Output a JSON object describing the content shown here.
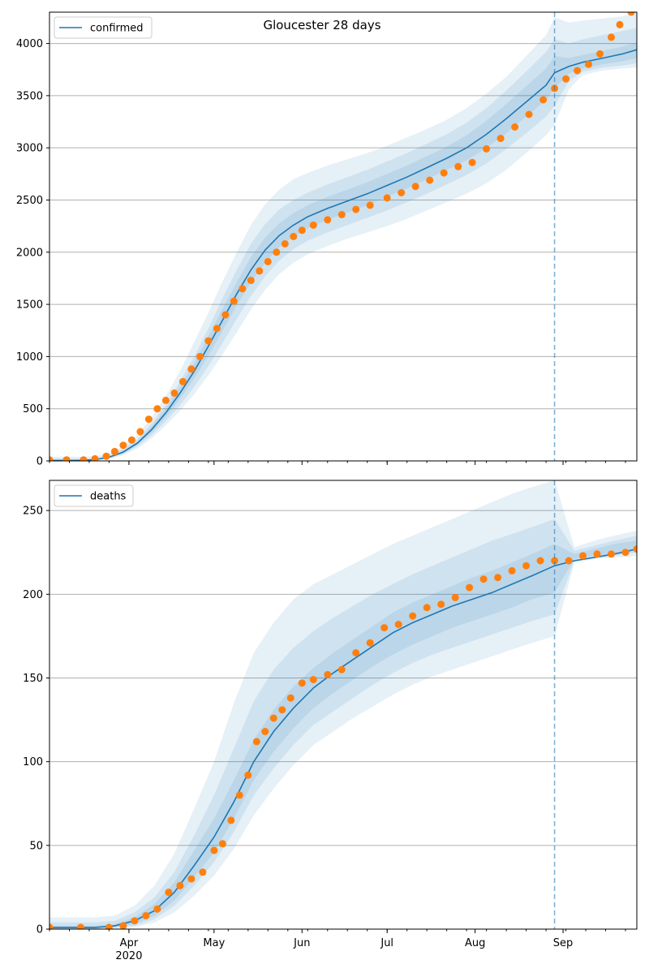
{
  "figure": {
    "title": "Gloucester 28 days",
    "x_tick_labels": [
      "Apr",
      "May",
      "Jun",
      "Jul",
      "Aug",
      "Sep"
    ],
    "x_year_label": "2020"
  },
  "colors": {
    "model_line": "#1f77b4",
    "band": "#1f77b4",
    "observed": "#ff7f0e",
    "grid": "#b0b0b0",
    "vline": "#1f77b4"
  },
  "chart_data": [
    {
      "type": "line",
      "panel": "top",
      "title": "Gloucester 28 days",
      "legend": {
        "label": "confirmed",
        "placement": "top-left"
      },
      "x_type": "date",
      "xlim": [
        "2020-03-04",
        "2020-09-27"
      ],
      "ylim": [
        0,
        4300
      ],
      "yticks": [
        0,
        500,
        1000,
        1500,
        2000,
        2500,
        3000,
        3500,
        4000
      ],
      "grid": "horizontal",
      "forecast_start": "2020-08-29",
      "model": {
        "x": [
          "2020-03-04",
          "2020-03-14",
          "2020-03-20",
          "2020-03-25",
          "2020-03-30",
          "2020-04-04",
          "2020-04-09",
          "2020-04-14",
          "2020-04-19",
          "2020-04-24",
          "2020-04-29",
          "2020-05-04",
          "2020-05-09",
          "2020-05-14",
          "2020-05-19",
          "2020-05-24",
          "2020-05-29",
          "2020-06-03",
          "2020-06-10",
          "2020-06-17",
          "2020-06-24",
          "2020-07-01",
          "2020-07-08",
          "2020-07-15",
          "2020-07-22",
          "2020-07-29",
          "2020-08-05",
          "2020-08-12",
          "2020-08-19",
          "2020-08-26",
          "2020-08-29",
          "2020-09-03",
          "2020-09-08",
          "2020-09-15",
          "2020-09-22",
          "2020-09-27"
        ],
        "y": [
          5,
          5,
          12,
          35,
          85,
          170,
          300,
          460,
          650,
          860,
          1100,
          1350,
          1600,
          1830,
          2020,
          2160,
          2260,
          2340,
          2420,
          2490,
          2560,
          2640,
          2720,
          2810,
          2900,
          3000,
          3130,
          3280,
          3440,
          3600,
          3720,
          3780,
          3820,
          3860,
          3900,
          3940
        ]
      },
      "bands": [
        {
          "level": "outer",
          "lower": [
            0,
            0,
            5,
            20,
            55,
            120,
            215,
            340,
            480,
            640,
            820,
            1020,
            1230,
            1450,
            1640,
            1790,
            1900,
            1980,
            2060,
            2130,
            2190,
            2250,
            2320,
            2400,
            2480,
            2560,
            2660,
            2790,
            2950,
            3120,
            3220,
            3560,
            3700,
            3740,
            3760,
            3770
          ],
          "upper": [
            40,
            40,
            45,
            70,
            140,
            250,
            420,
            620,
            860,
            1140,
            1420,
            1720,
            2000,
            2260,
            2460,
            2600,
            2700,
            2760,
            2830,
            2890,
            2950,
            3020,
            3100,
            3180,
            3270,
            3380,
            3520,
            3680,
            3880,
            4080,
            4250,
            4200,
            4220,
            4240,
            4260,
            4300
          ]
        },
        {
          "level": "middle",
          "lower": [
            0,
            0,
            8,
            26,
            66,
            140,
            245,
            380,
            535,
            710,
            910,
            1130,
            1360,
            1580,
            1770,
            1920,
            2030,
            2110,
            2190,
            2260,
            2330,
            2400,
            2480,
            2560,
            2650,
            2740,
            2850,
            2990,
            3140,
            3300,
            3400,
            3640,
            3730,
            3770,
            3790,
            3810
          ],
          "upper": [
            20,
            20,
            25,
            55,
            115,
            210,
            360,
            540,
            760,
            1000,
            1270,
            1560,
            1830,
            2080,
            2270,
            2410,
            2500,
            2570,
            2650,
            2720,
            2790,
            2870,
            2950,
            3040,
            3130,
            3240,
            3380,
            3550,
            3730,
            3920,
            4040,
            4000,
            4040,
            4080,
            4120,
            4150
          ]
        },
        {
          "level": "inner",
          "lower": [
            2,
            2,
            10,
            30,
            75,
            155,
            272,
            420,
            595,
            790,
            1010,
            1250,
            1490,
            1710,
            1900,
            2050,
            2150,
            2230,
            2310,
            2380,
            2450,
            2530,
            2610,
            2700,
            2790,
            2880,
            3000,
            3140,
            3300,
            3460,
            3570,
            3710,
            3760,
            3800,
            3830,
            3860
          ],
          "upper": [
            10,
            10,
            16,
            42,
            98,
            188,
            330,
            505,
            710,
            935,
            1195,
            1455,
            1710,
            1955,
            2140,
            2275,
            2375,
            2450,
            2530,
            2600,
            2670,
            2750,
            2830,
            2920,
            3010,
            3120,
            3260,
            3420,
            3590,
            3760,
            3880,
            3860,
            3890,
            3930,
            3970,
            4010
          ]
        }
      ],
      "observed": {
        "x": [
          "2020-03-04",
          "2020-03-10",
          "2020-03-16",
          "2020-03-20",
          "2020-03-24",
          "2020-03-27",
          "2020-03-30",
          "2020-04-02",
          "2020-04-05",
          "2020-04-08",
          "2020-04-11",
          "2020-04-14",
          "2020-04-17",
          "2020-04-20",
          "2020-04-23",
          "2020-04-26",
          "2020-04-29",
          "2020-05-02",
          "2020-05-05",
          "2020-05-08",
          "2020-05-11",
          "2020-05-14",
          "2020-05-17",
          "2020-05-20",
          "2020-05-23",
          "2020-05-26",
          "2020-05-29",
          "2020-06-01",
          "2020-06-05",
          "2020-06-10",
          "2020-06-15",
          "2020-06-20",
          "2020-06-25",
          "2020-07-01",
          "2020-07-06",
          "2020-07-11",
          "2020-07-16",
          "2020-07-21",
          "2020-07-26",
          "2020-07-31",
          "2020-08-05",
          "2020-08-10",
          "2020-08-15",
          "2020-08-20",
          "2020-08-25",
          "2020-08-29",
          "2020-09-02",
          "2020-09-06",
          "2020-09-10",
          "2020-09-14",
          "2020-09-18",
          "2020-09-21",
          "2020-09-25",
          "2020-09-27"
        ],
        "y": [
          10,
          10,
          10,
          20,
          45,
          90,
          150,
          200,
          280,
          400,
          500,
          580,
          650,
          760,
          880,
          1000,
          1150,
          1270,
          1400,
          1530,
          1650,
          1730,
          1820,
          1910,
          2000,
          2080,
          2150,
          2210,
          2260,
          2310,
          2360,
          2410,
          2450,
          2520,
          2570,
          2630,
          2690,
          2760,
          2820,
          2860,
          2990,
          3090,
          3200,
          3320,
          3460,
          3570,
          3660,
          3740,
          3800,
          3900,
          4060,
          4180,
          4300,
          4330
        ]
      }
    },
    {
      "type": "line",
      "panel": "bottom",
      "legend": {
        "label": "deaths",
        "placement": "top-left"
      },
      "x_type": "date",
      "xlim": [
        "2020-03-04",
        "2020-09-27"
      ],
      "ylim": [
        0,
        268
      ],
      "yticks": [
        0,
        50,
        100,
        150,
        200,
        250
      ],
      "grid": "horizontal",
      "forecast_start": "2020-08-29",
      "model": {
        "x": [
          "2020-03-04",
          "2020-03-20",
          "2020-03-27",
          "2020-04-03",
          "2020-04-10",
          "2020-04-17",
          "2020-04-24",
          "2020-05-01",
          "2020-05-08",
          "2020-05-15",
          "2020-05-22",
          "2020-05-29",
          "2020-06-05",
          "2020-06-12",
          "2020-06-19",
          "2020-06-26",
          "2020-07-03",
          "2020-07-10",
          "2020-07-17",
          "2020-07-24",
          "2020-07-31",
          "2020-08-07",
          "2020-08-14",
          "2020-08-21",
          "2020-08-29",
          "2020-09-05",
          "2020-09-12",
          "2020-09-19",
          "2020-09-27"
        ],
        "y": [
          1,
          1,
          2,
          5,
          11,
          22,
          38,
          55,
          76,
          100,
          118,
          132,
          144,
          153,
          161,
          169,
          177,
          183,
          188,
          193,
          197,
          201,
          206,
          211,
          217,
          220,
          222,
          224,
          227
        ]
      },
      "bands": [
        {
          "level": "outer",
          "lower": [
            0,
            0,
            0,
            1,
            4,
            10,
            20,
            32,
            48,
            68,
            84,
            98,
            110,
            118,
            126,
            133,
            140,
            146,
            151,
            155,
            159,
            163,
            167,
            171,
            175,
            219,
            221,
            222,
            223
          ],
          "upper": [
            7,
            7,
            8,
            14,
            26,
            45,
            72,
            100,
            135,
            165,
            183,
            197,
            206,
            212,
            218,
            224,
            230,
            235,
            240,
            245,
            250,
            255,
            260,
            264,
            268,
            228,
            232,
            235,
            238
          ]
        },
        {
          "level": "middle",
          "lower": [
            0,
            0,
            1,
            2,
            6,
            14,
            26,
            40,
            58,
            80,
            96,
            110,
            122,
            130,
            138,
            146,
            153,
            159,
            164,
            168,
            172,
            176,
            180,
            184,
            188,
            220,
            222,
            223,
            225
          ],
          "upper": [
            4,
            4,
            5,
            10,
            19,
            34,
            56,
            80,
            108,
            136,
            155,
            168,
            178,
            186,
            193,
            200,
            206,
            212,
            217,
            222,
            227,
            232,
            236,
            240,
            245,
            226,
            229,
            232,
            235
          ]
        },
        {
          "level": "inner",
          "lower": [
            0,
            0,
            1,
            3,
            8,
            17,
            31,
            46,
            66,
            89,
            106,
            120,
            132,
            141,
            149,
            157,
            164,
            170,
            175,
            180,
            184,
            188,
            192,
            197,
            201,
            221,
            223,
            224,
            226
          ],
          "upper": [
            2,
            2,
            3,
            7,
            15,
            28,
            47,
            66,
            89,
            113,
            131,
            145,
            156,
            165,
            173,
            181,
            189,
            195,
            200,
            205,
            210,
            214,
            219,
            224,
            230,
            224,
            227,
            230,
            232
          ]
        }
      ],
      "observed": {
        "x": [
          "2020-03-04",
          "2020-03-15",
          "2020-03-25",
          "2020-03-30",
          "2020-04-03",
          "2020-04-07",
          "2020-04-11",
          "2020-04-15",
          "2020-04-19",
          "2020-04-23",
          "2020-04-27",
          "2020-05-01",
          "2020-05-04",
          "2020-05-07",
          "2020-05-10",
          "2020-05-13",
          "2020-05-16",
          "2020-05-19",
          "2020-05-22",
          "2020-05-25",
          "2020-05-28",
          "2020-06-01",
          "2020-06-05",
          "2020-06-10",
          "2020-06-15",
          "2020-06-20",
          "2020-06-25",
          "2020-06-30",
          "2020-07-05",
          "2020-07-10",
          "2020-07-15",
          "2020-07-20",
          "2020-07-25",
          "2020-07-30",
          "2020-08-04",
          "2020-08-09",
          "2020-08-14",
          "2020-08-19",
          "2020-08-24",
          "2020-08-29",
          "2020-09-03",
          "2020-09-08",
          "2020-09-13",
          "2020-09-18",
          "2020-09-23",
          "2020-09-27"
        ],
        "y": [
          1,
          1,
          1,
          2,
          5,
          8,
          12,
          22,
          26,
          30,
          34,
          47,
          51,
          65,
          80,
          92,
          112,
          118,
          126,
          131,
          138,
          147,
          149,
          152,
          155,
          165,
          171,
          180,
          182,
          187,
          192,
          194,
          198,
          204,
          209,
          210,
          214,
          217,
          220,
          220,
          220,
          223,
          224,
          224,
          225,
          227
        ]
      }
    }
  ]
}
